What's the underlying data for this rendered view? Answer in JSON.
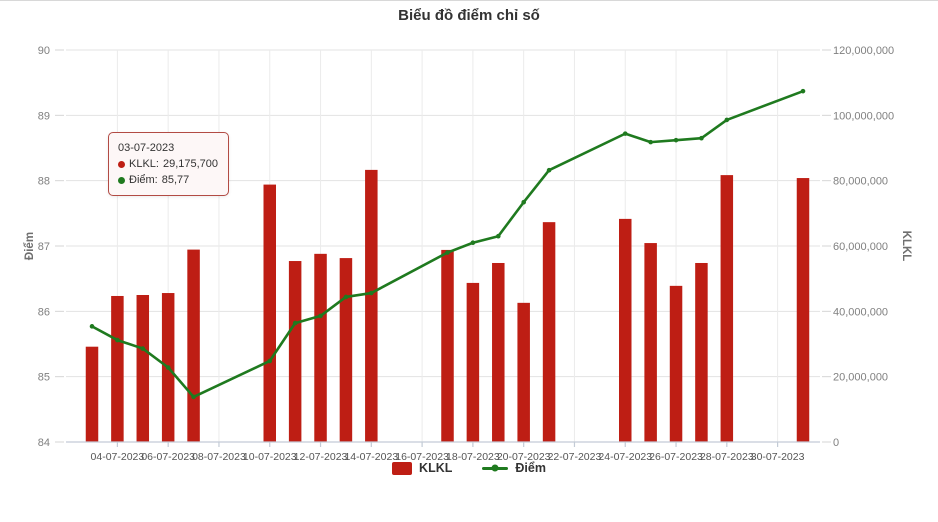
{
  "title": "Biểu đồ điểm chỉ số",
  "colors": {
    "bar": "#be1e14",
    "line": "#1f7a1f",
    "title_text": "#333333",
    "tooltip_border": "#b24b44",
    "tooltip_background": "#fdf7f7"
  },
  "tooltip": {
    "date": "03-07-2023",
    "rows": [
      {
        "label": "KLKL:",
        "value": "29,175,700",
        "color": "#be1e14"
      },
      {
        "label": "Điểm:",
        "value": "85,77",
        "color": "#1f7a1f"
      }
    ]
  },
  "legend": {
    "items": [
      {
        "label": "KLKL",
        "type": "bar",
        "color": "#be1e14"
      },
      {
        "label": "Điểm",
        "type": "line",
        "color": "#1f7a1f"
      }
    ]
  },
  "chart_data": {
    "type": "bar",
    "title": "Biểu đồ điểm chỉ số",
    "combo": "bars (KLKL, right axis) + line (Điểm, left axis)",
    "x_axis": {
      "type": "date",
      "month": "07-2023",
      "first_day": 3,
      "last_day": 31,
      "tick_days": [
        4,
        6,
        8,
        10,
        12,
        14,
        16,
        18,
        20,
        22,
        24,
        26,
        28,
        30
      ],
      "tick_labels": [
        "04-07-2023",
        "06-07-2023",
        "08-07-2023",
        "10-07-2023",
        "12-07-2023",
        "14-07-2023",
        "16-07-2023",
        "18-07-2023",
        "20-07-2023",
        "22-07-2023",
        "24-07-2023",
        "26-07-2023",
        "28-07-2023",
        "30-07-2023"
      ]
    },
    "left_axis": {
      "label": "Điểm",
      "min": 84,
      "max": 90,
      "ticks": [
        84,
        85,
        86,
        87,
        88,
        89,
        90
      ]
    },
    "right_axis": {
      "label": "KLKL",
      "min": 0,
      "max": 120000000,
      "tick_values": [
        0,
        20000000,
        40000000,
        60000000,
        80000000,
        100000000,
        120000000
      ],
      "tick_labels": [
        "0",
        "20,000,000",
        "40,000,000",
        "60,000,000",
        "80,000,000",
        "100,000,000",
        "120,000,000"
      ]
    },
    "days": [
      3,
      4,
      5,
      6,
      7,
      10,
      11,
      12,
      13,
      14,
      17,
      18,
      19,
      20,
      21,
      24,
      25,
      26,
      27,
      28,
      31
    ],
    "dates": [
      "03-07-2023",
      "04-07-2023",
      "05-07-2023",
      "06-07-2023",
      "07-07-2023",
      "10-07-2023",
      "11-07-2023",
      "12-07-2023",
      "13-07-2023",
      "14-07-2023",
      "17-07-2023",
      "18-07-2023",
      "19-07-2023",
      "20-07-2023",
      "21-07-2023",
      "24-07-2023",
      "25-07-2023",
      "26-07-2023",
      "27-07-2023",
      "28-07-2023",
      "31-07-2023"
    ],
    "series": [
      {
        "name": "KLKL",
        "type": "bar",
        "axis": "right",
        "color": "#be1e14",
        "values": [
          29175700,
          44700000,
          45000000,
          45600000,
          58900000,
          78800000,
          55400000,
          57600000,
          56300000,
          83300000,
          58800000,
          48700000,
          54800000,
          42600000,
          67300000,
          68300000,
          60900000,
          47800000,
          54800000,
          81700000,
          80800000
        ]
      },
      {
        "name": "Điểm",
        "type": "line",
        "axis": "left",
        "color": "#1f7a1f",
        "values": [
          85.77,
          85.56,
          85.43,
          85.14,
          84.69,
          85.24,
          85.82,
          85.93,
          86.22,
          86.28,
          86.9,
          87.05,
          87.15,
          87.67,
          88.16,
          88.72,
          88.59,
          88.62,
          88.65,
          88.93,
          89.37
        ]
      }
    ],
    "grid": "horizontal and vertical light gridlines on",
    "legend_position": "bottom-center"
  }
}
